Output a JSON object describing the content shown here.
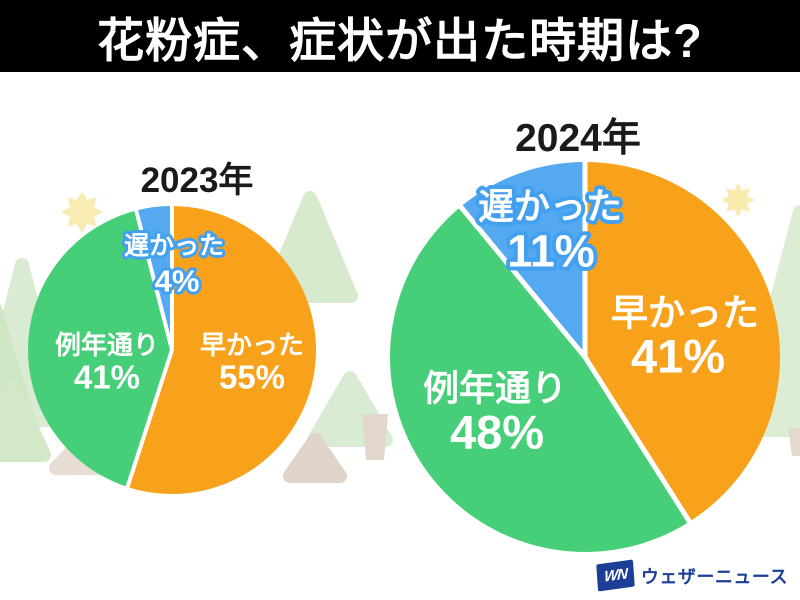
{
  "header": {
    "title": "花粉症、症状が出た時期は?",
    "bg_color": "#000000",
    "text_color": "#ffffff"
  },
  "chart_data": [
    {
      "type": "pie",
      "title": "2023年",
      "unit": "%",
      "start_angle_deg": 0,
      "direction": "clockwise",
      "label_color": "#ffffff",
      "slices": [
        {
          "label": "早かった",
          "value": 55,
          "color": "#F8A11B"
        },
        {
          "label": "例年通り",
          "value": 41,
          "color": "#47CE78"
        },
        {
          "label": "遅かった",
          "value": 4,
          "color": "#54A9F1",
          "label_outline": "#42A0EF"
        }
      ]
    },
    {
      "type": "pie",
      "title": "2024年",
      "unit": "%",
      "start_angle_deg": 0,
      "direction": "clockwise",
      "label_color": "#ffffff",
      "slices": [
        {
          "label": "早かった",
          "value": 41,
          "color": "#F8A11B"
        },
        {
          "label": "例年通り",
          "value": 48,
          "color": "#47CE78"
        },
        {
          "label": "遅かった",
          "value": 11,
          "color": "#54A9F1",
          "label_outline": "#42A0EF"
        }
      ]
    }
  ],
  "logo": {
    "mark": "WN",
    "text": "ウェザーニュース",
    "color": "#1c3e94"
  }
}
